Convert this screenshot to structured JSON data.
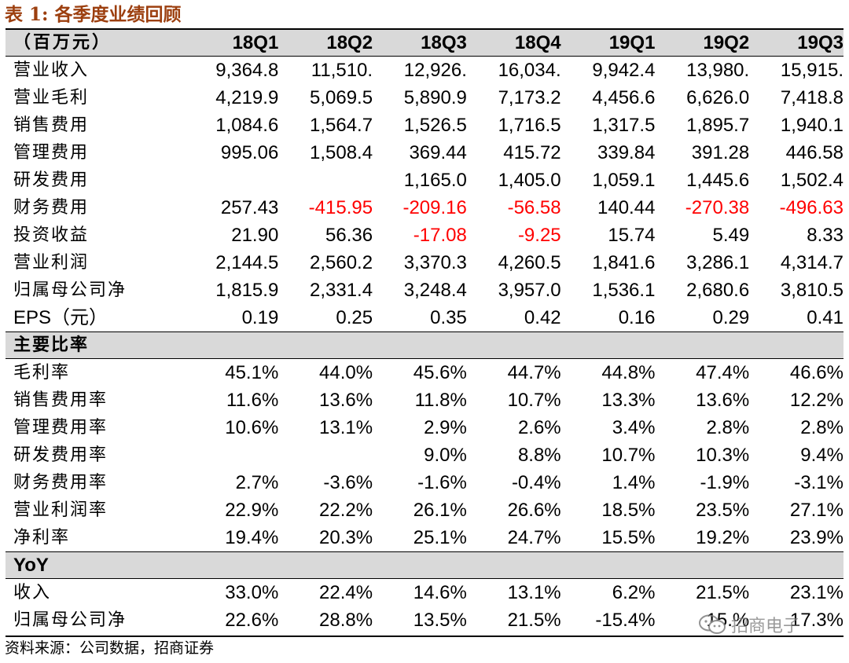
{
  "title": "表 1:  各季度业绩回顾",
  "header": {
    "unit_label": "（百万元）",
    "columns": [
      "18Q1",
      "18Q2",
      "18Q3",
      "18Q4",
      "19Q1",
      "19Q2",
      "19Q3"
    ]
  },
  "financials": [
    {
      "label": "营业收入",
      "values": [
        "9,364.8",
        "11,510.",
        "12,926.",
        "16,034.",
        "9,942.4",
        "13,980.",
        "15,915."
      ]
    },
    {
      "label": "营业毛利",
      "values": [
        "4,219.9",
        "5,069.5",
        "5,890.9",
        "7,173.2",
        "4,456.6",
        "6,626.0",
        "7,418.8"
      ]
    },
    {
      "label": "销售费用",
      "values": [
        "1,084.6",
        "1,564.7",
        "1,526.5",
        "1,716.5",
        "1,317.5",
        "1,895.7",
        "1,940.1"
      ]
    },
    {
      "label": "管理费用",
      "values": [
        "995.06",
        "1,508.4",
        "369.44",
        "415.72",
        "339.84",
        "391.28",
        "446.58"
      ]
    },
    {
      "label": "研发费用",
      "values": [
        "",
        "",
        "1,165.0",
        "1,405.0",
        "1,059.1",
        "1,445.6",
        "1,502.4"
      ]
    },
    {
      "label": "财务费用",
      "values": [
        "257.43",
        "-415.95",
        "-209.16",
        "-56.58",
        "140.44",
        "-270.38",
        "-496.63"
      ]
    },
    {
      "label": "投资收益",
      "values": [
        "21.90",
        "56.36",
        "-17.08",
        "-9.25",
        "15.74",
        "5.49",
        "8.33"
      ]
    },
    {
      "label": "营业利润",
      "values": [
        "2,144.5",
        "2,560.2",
        "3,370.3",
        "4,260.5",
        "1,841.6",
        "3,286.1",
        "4,314.7"
      ]
    },
    {
      "label": "归属母公司净",
      "values": [
        "1,815.9",
        "2,331.4",
        "3,248.4",
        "3,957.0",
        "1,536.1",
        "2,680.6",
        "3,810.5"
      ]
    },
    {
      "label": "EPS（元）",
      "values": [
        "0.19",
        "0.25",
        "0.35",
        "0.42",
        "0.16",
        "0.29",
        "0.41"
      ]
    }
  ],
  "ratios_section": {
    "title": "主要比率",
    "rows": [
      {
        "label": "毛利率",
        "values": [
          "45.1%",
          "44.0%",
          "45.6%",
          "44.7%",
          "44.8%",
          "47.4%",
          "46.6%"
        ]
      },
      {
        "label": "销售费用率",
        "values": [
          "11.6%",
          "13.6%",
          "11.8%",
          "10.7%",
          "13.3%",
          "13.6%",
          "12.2%"
        ]
      },
      {
        "label": "管理费用率",
        "values": [
          "10.6%",
          "13.1%",
          "2.9%",
          "2.6%",
          "3.4%",
          "2.8%",
          "2.8%"
        ]
      },
      {
        "label": "研发费用率",
        "values": [
          "",
          "",
          "9.0%",
          "8.8%",
          "10.7%",
          "10.3%",
          "9.4%"
        ]
      },
      {
        "label": "财务费用率",
        "values": [
          "2.7%",
          "-3.6%",
          "-1.6%",
          "-0.4%",
          "1.4%",
          "-1.9%",
          "-3.1%"
        ]
      },
      {
        "label": "营业利润率",
        "values": [
          "22.9%",
          "22.2%",
          "26.1%",
          "26.6%",
          "18.5%",
          "23.5%",
          "27.1%"
        ]
      },
      {
        "label": "净利率",
        "values": [
          "19.4%",
          "20.3%",
          "25.1%",
          "24.7%",
          "15.5%",
          "19.2%",
          "23.9%"
        ]
      }
    ]
  },
  "yoy_section": {
    "title": "YoY",
    "rows": [
      {
        "label": "收入",
        "values": [
          "33.0%",
          "22.4%",
          "14.6%",
          "13.1%",
          "6.2%",
          "21.5%",
          "23.1%"
        ]
      },
      {
        "label": "归属母公司净",
        "values": [
          "22.6%",
          "28.8%",
          "13.5%",
          "21.5%",
          "-15.4%",
          "15.%",
          "17.3%"
        ]
      }
    ]
  },
  "source": "资料来源：公司数据，招商证券",
  "watermark": {
    "text": "招商电子",
    "icon": "wechat-icon"
  },
  "colors": {
    "title": "#9c3f0f",
    "negative": "#ff0000",
    "header_bg": "#d9d9d9"
  }
}
